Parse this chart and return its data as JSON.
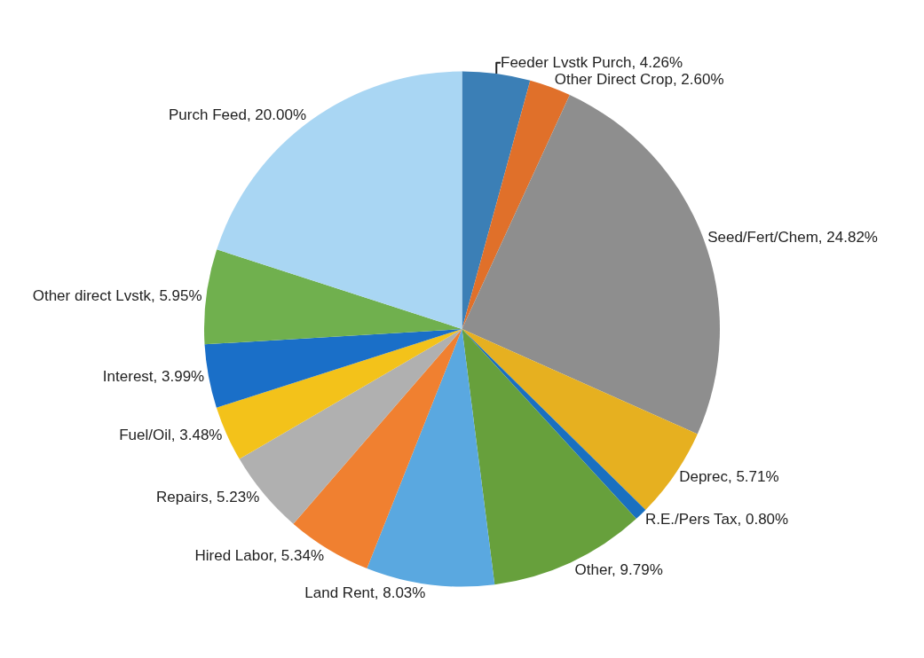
{
  "chart_data": {
    "type": "pie",
    "categories": [
      "Feeder Lvstk Purch",
      "Other Direct Crop",
      "Seed/Fert/Chem",
      "Deprec",
      "R.E./Pers Tax",
      "Other",
      "Land Rent",
      "Hired Labor",
      "Repairs",
      "Fuel/Oil",
      "Interest",
      "Other direct Lvstk",
      "Purch Feed"
    ],
    "values": [
      4.26,
      2.6,
      24.82,
      5.71,
      0.8,
      9.79,
      8.03,
      5.34,
      5.23,
      3.48,
      3.99,
      5.95,
      20.0
    ],
    "value_labels": [
      "4.26%",
      "2.60%",
      "24.82%",
      "5.71%",
      "0.80%",
      "9.79%",
      "8.03%",
      "5.34%",
      "5.23%",
      "3.48%",
      "3.99%",
      "5.95%",
      "20.00%"
    ],
    "colors": [
      "#3b7fb6",
      "#e0702a",
      "#8e8e8e",
      "#e6b020",
      "#1a70c0",
      "#67a03c",
      "#5aa8e0",
      "#f08030",
      "#b0b0b0",
      "#f3c21a",
      "#1a6fc8",
      "#70b04e",
      "#a9d6f3"
    ],
    "legend": false
  }
}
